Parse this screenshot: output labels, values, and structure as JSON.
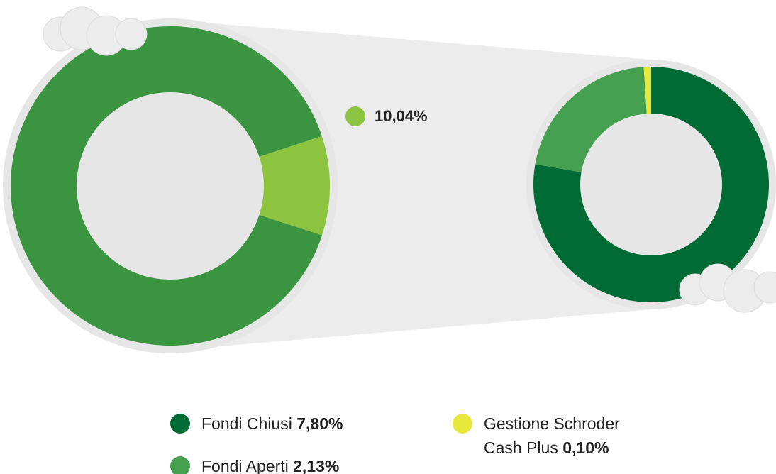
{
  "chart_data": [
    {
      "type": "donut",
      "values": [
        89.96,
        10.04
      ],
      "value_labels": [
        null,
        "10,04%"
      ],
      "colors": [
        "#3a9440",
        "#8cc43f"
      ]
    },
    {
      "type": "donut",
      "categories": [
        "Fondi Chiusi",
        "Fondi Aperti",
        "Gestione Schroder Cash Plus"
      ],
      "values": [
        7.8,
        2.13,
        0.1
      ],
      "value_labels": [
        "7,80%",
        "2,13%",
        "0,10%"
      ],
      "colors": [
        "#006b35",
        "#45a050",
        "#e8e83c"
      ]
    }
  ]
}
